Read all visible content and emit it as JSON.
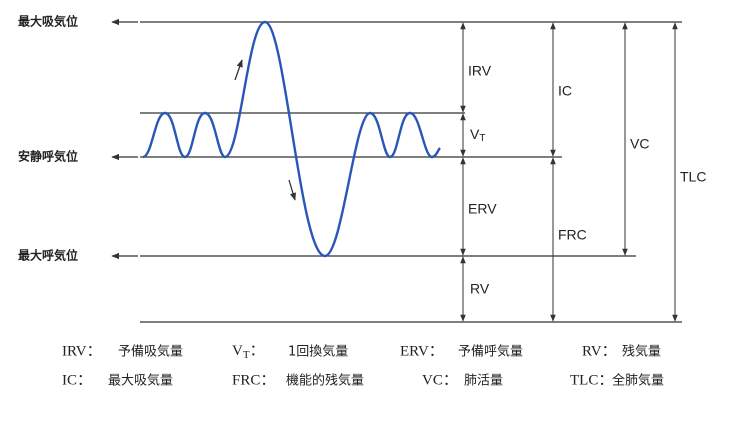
{
  "levels": {
    "max_inspiratory": "最大吸気位",
    "resting_expiratory": "安静呼気位",
    "max_expiratory": "最大呼気位"
  },
  "segments": {
    "irv": "IRV",
    "vt": {
      "main": "V",
      "sub": "T"
    },
    "erv": "ERV",
    "rv": "RV",
    "ic": "IC",
    "frc": "FRC",
    "vc": "VC",
    "tlc": "TLC"
  },
  "legend": [
    [
      {
        "abbr": "IRV：",
        "text": "予備吸気量"
      },
      {
        "abbr": {
          "main": "V",
          "sub": "T",
          "sep": "："
        },
        "text": "1回換気量"
      },
      {
        "abbr": "ERV：",
        "text": "予備呼気量"
      },
      {
        "abbr": "RV：",
        "text": "残気量"
      }
    ],
    [
      {
        "abbr": "IC：",
        "text": "最大吸気量"
      },
      {
        "abbr": "FRC：",
        "text": "機能的残気量"
      },
      {
        "abbr": "VC：",
        "text": "肺活量"
      },
      {
        "abbr": "TLC：",
        "text": "全肺気量"
      }
    ]
  ]
}
